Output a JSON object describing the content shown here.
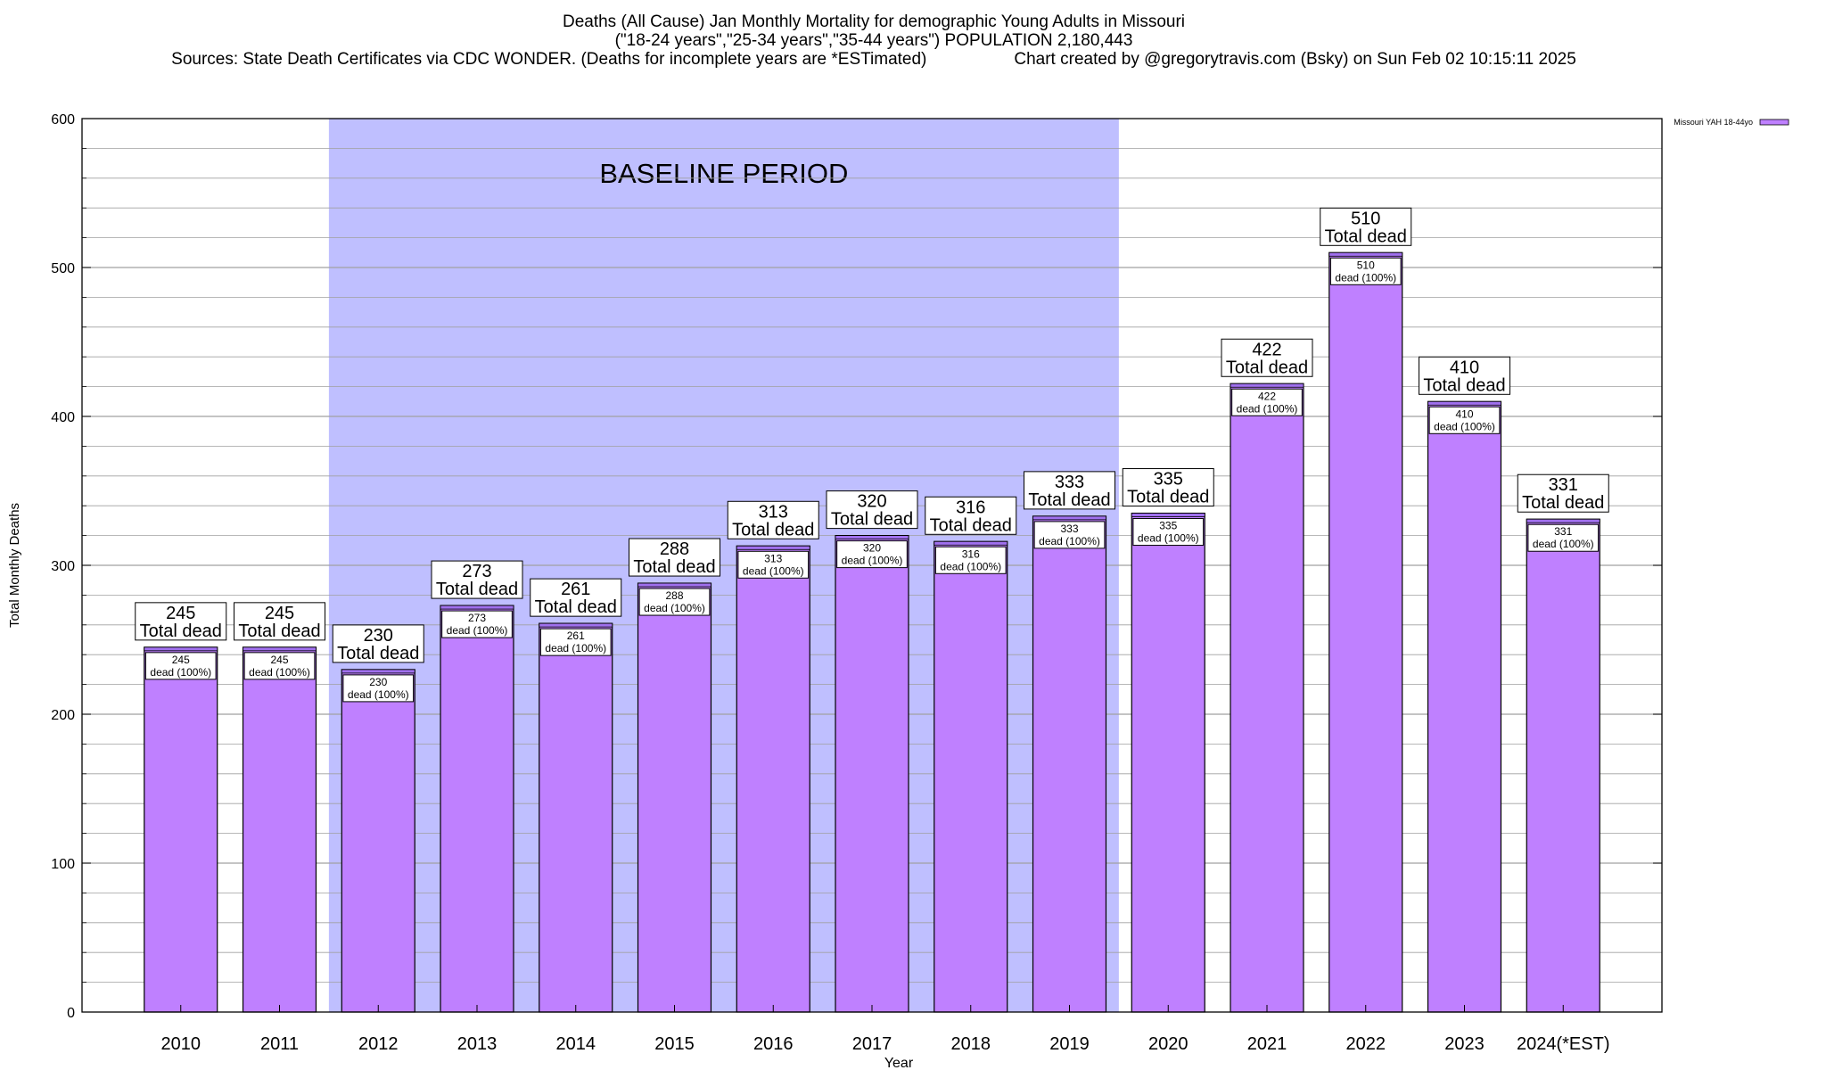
{
  "header": {
    "title_line1": "Deaths (All Cause) Jan Monthly Mortality for demographic Young Adults in Missouri",
    "title_line2": "(\"18-24 years\",\"25-34 years\",\"35-44 years\") POPULATION 2,180,443",
    "sources": "Sources: State Death Certificates via CDC WONDER. (Deaths for incomplete years are *ESTimated)",
    "credit": "Chart created by @gregorytravis.com (Bsky) on Sun Feb 02 10:15:11 2025"
  },
  "chart_data": {
    "type": "bar",
    "title": "Deaths (All Cause) Jan Monthly Mortality for demographic Young Adults in Missouri",
    "xlabel": "Year",
    "ylabel": "Total Monthly Deaths",
    "ylim": [
      0,
      600
    ],
    "yticks": [
      0,
      100,
      200,
      300,
      400,
      500,
      600
    ],
    "grid": true,
    "legend_position": "top-right",
    "categories": [
      "2010",
      "2011",
      "2012",
      "2013",
      "2014",
      "2015",
      "2016",
      "2017",
      "2018",
      "2019",
      "2020",
      "2021",
      "2022",
      "2023",
      "2024(*EST)"
    ],
    "series": [
      {
        "name": "Missouri YAH 18-44yo",
        "values": [
          245,
          245,
          230,
          273,
          261,
          288,
          313,
          320,
          316,
          333,
          335,
          422,
          510,
          410,
          331
        ]
      }
    ],
    "top_label_suffix": "Total dead",
    "inner_label_suffix": "dead (100%)",
    "baseline_band": {
      "label": "BASELINE PERIOD",
      "from": "2012",
      "to": "2019"
    },
    "colors": {
      "bar": "#bf80ff",
      "bar_top": "#a070ee",
      "baseline_band": "#bfbfff",
      "grid": "#a0a0a0",
      "axis": "#000000"
    }
  }
}
